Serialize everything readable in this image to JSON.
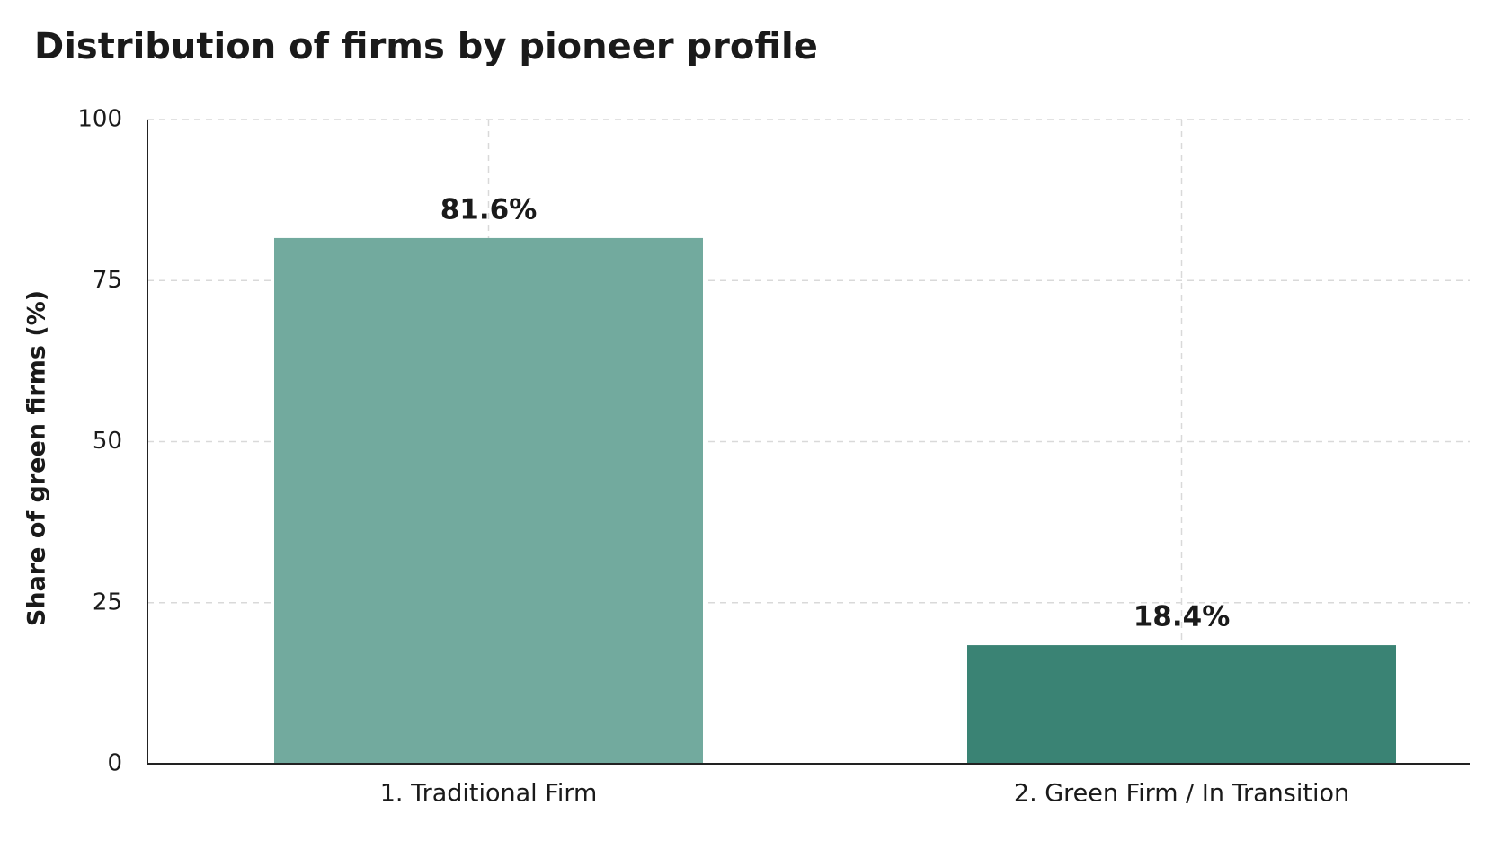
{
  "chart_data": {
    "type": "bar",
    "title": "Distribution of firms by pioneer profile",
    "y_label": "Share of green firms (%)",
    "categories": [
      "1. Traditional Firm",
      "2. Green Firm / In Transition"
    ],
    "values": [
      81.6,
      18.4
    ],
    "value_labels": [
      "81.6%",
      "18.4%"
    ],
    "colors": [
      "#72aa9e",
      "#3a8374"
    ],
    "ylim": [
      0,
      100
    ],
    "yticks": [
      0,
      25,
      50,
      75,
      100
    ],
    "grid": true
  }
}
